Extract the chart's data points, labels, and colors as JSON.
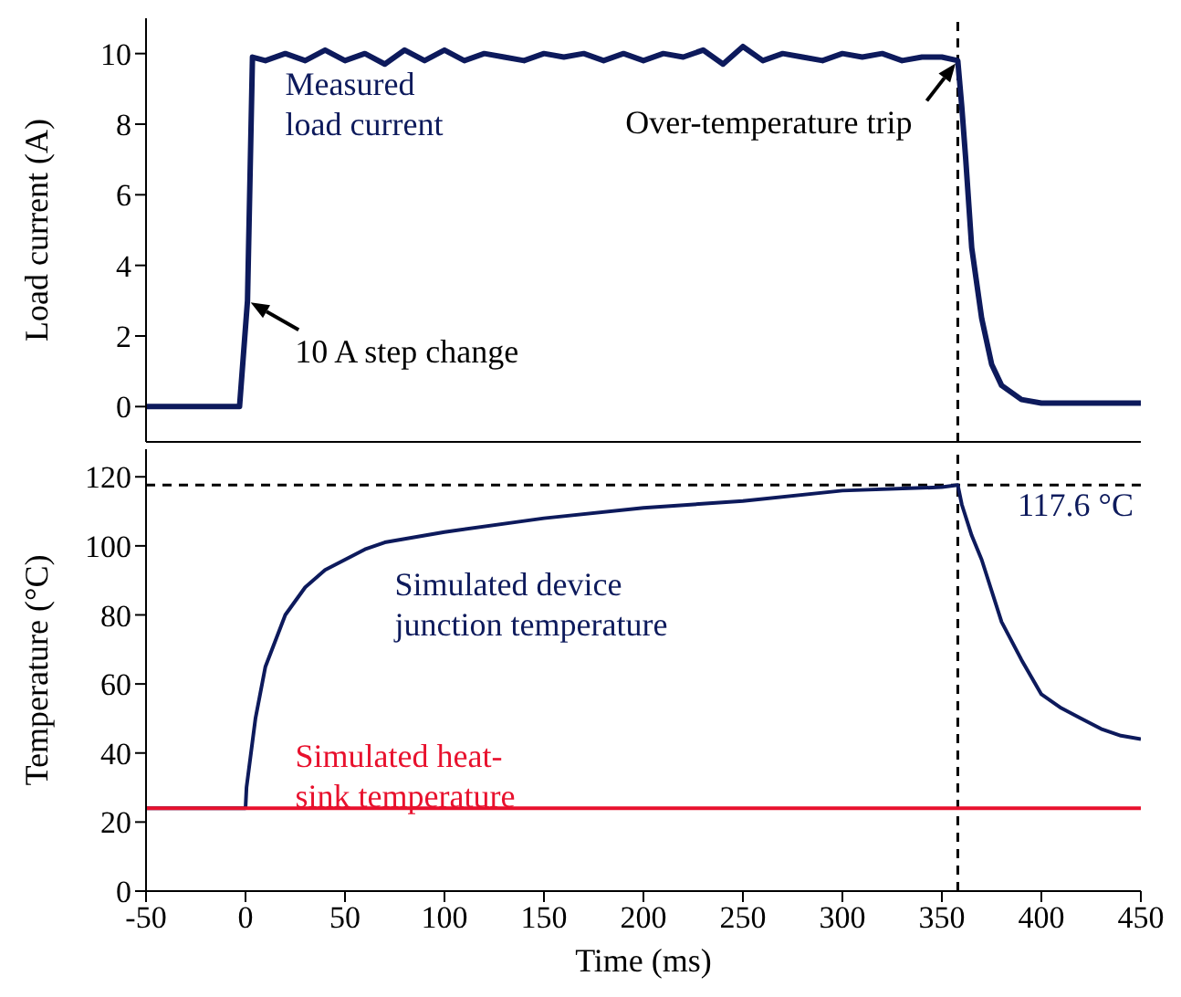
{
  "chart_data": [
    {
      "type": "line",
      "ylabel": "Load current (A)",
      "xlim": [
        -50,
        450
      ],
      "xticks": [
        -50,
        0,
        50,
        100,
        150,
        200,
        250,
        300,
        350,
        400,
        450
      ],
      "ylim": [
        -1,
        11
      ],
      "yticks": [
        0,
        2,
        4,
        6,
        8,
        10
      ],
      "tick_labels": "y",
      "marker": "none",
      "line_style": "solid",
      "series": [
        {
          "name": "Measured load current",
          "color": "#0d1a5c",
          "x": [
            -50,
            -40,
            -30,
            -20,
            -10,
            -3,
            1,
            3.5,
            10,
            20,
            30,
            40,
            50,
            60,
            70,
            80,
            90,
            100,
            110,
            120,
            130,
            140,
            150,
            160,
            170,
            180,
            190,
            200,
            210,
            220,
            230,
            240,
            250,
            260,
            270,
            280,
            290,
            300,
            310,
            320,
            330,
            340,
            350,
            358,
            360,
            362,
            365,
            370,
            375,
            380,
            390,
            400,
            420,
            450
          ],
          "values": [
            0,
            0,
            0,
            0,
            0,
            0,
            3,
            9.9,
            9.8,
            10,
            9.8,
            10.1,
            9.8,
            10,
            9.7,
            10.1,
            9.8,
            10.1,
            9.8,
            10,
            9.9,
            9.8,
            10,
            9.9,
            10,
            9.8,
            10,
            9.8,
            10,
            9.9,
            10.1,
            9.7,
            10.2,
            9.8,
            10,
            9.9,
            9.8,
            10,
            9.9,
            10,
            9.8,
            9.9,
            9.9,
            9.8,
            8.5,
            7,
            4.5,
            2.5,
            1.2,
            0.6,
            0.2,
            0.1,
            0.1,
            0.1
          ]
        }
      ],
      "ref_lines": [
        {
          "axis": "x",
          "value": 358,
          "color": "#000000",
          "line_style": "dashed"
        }
      ],
      "annotations": [
        {
          "text": "10 A step change",
          "x": 1,
          "y": 3
        },
        {
          "text": "Over-temperature trip",
          "x": 358,
          "y": 9.8
        }
      ]
    },
    {
      "type": "line",
      "xlabel": "Time (ms)",
      "ylabel": "Temperature (°C)",
      "xlim": [
        -50,
        450
      ],
      "xticks": [
        {
          "value": -50,
          "label": "-50"
        },
        0,
        50,
        100,
        150,
        200,
        250,
        300,
        350,
        400,
        450
      ],
      "ylim": [
        0,
        128
      ],
      "yticks": [
        0,
        20,
        40,
        60,
        80,
        100,
        120
      ],
      "marker": "none",
      "line_style": "solid",
      "series": [
        {
          "name": "Simulated device junction temperature",
          "color": "#0d1a5c",
          "x": [
            -50,
            0,
            0.5,
            5,
            10,
            20,
            30,
            40,
            50,
            60,
            70,
            80,
            100,
            150,
            200,
            250,
            300,
            350,
            358,
            360,
            365,
            370,
            380,
            390,
            400,
            410,
            420,
            430,
            440,
            450
          ],
          "values": [
            24,
            24,
            30,
            50,
            65,
            80,
            88,
            93,
            96,
            99,
            101,
            102,
            104,
            108,
            111,
            113,
            116,
            117,
            117.6,
            112,
            103,
            96,
            78,
            67,
            57,
            53,
            50,
            47,
            45,
            44
          ]
        },
        {
          "name": "Simulated heat-sink temperature",
          "color": "#e8112d",
          "x": [
            -50,
            450
          ],
          "values": [
            24,
            24
          ]
        }
      ],
      "ref_lines": [
        {
          "axis": "x",
          "value": 358,
          "color": "#000000",
          "line_style": "dashed"
        },
        {
          "axis": "y",
          "value": 117.6,
          "label": "117.6 °C",
          "color": "#000000",
          "line_style": "dashed"
        }
      ]
    }
  ]
}
